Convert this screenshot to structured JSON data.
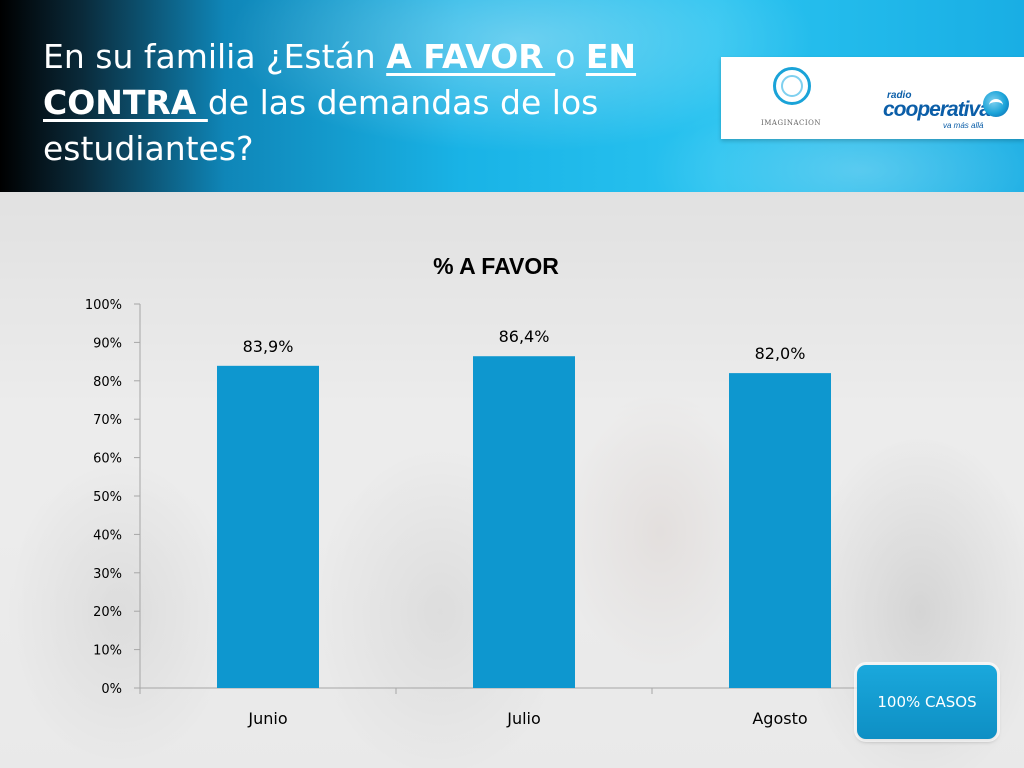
{
  "header": {
    "title_parts": [
      {
        "text": "En su familia ¿Están ",
        "underline": false
      },
      {
        "text": "A FAVOR ",
        "underline": true
      },
      {
        "text": "o ",
        "underline": false
      },
      {
        "text": "EN CONTRA ",
        "underline": true
      },
      {
        "text": "de las demandas de los estudiantes?",
        "underline": false
      }
    ],
    "logos": {
      "imaginacion": "IMAGINACION",
      "radio": "radio",
      "cooperativa": "cooperativa",
      "tagline": "va más allá"
    }
  },
  "footer_badge": "100% CASOS",
  "colors": {
    "bar": "#0e97cf",
    "axis": "#a6a6a6"
  },
  "chart_data": {
    "type": "bar",
    "title": "% A FAVOR",
    "categories": [
      "Junio",
      "Julio",
      "Agosto"
    ],
    "values": [
      83.9,
      86.4,
      82.0
    ],
    "data_labels": [
      "83,9%",
      "86,4%",
      "82,0%"
    ],
    "yticks": [
      "0%",
      "10%",
      "20%",
      "30%",
      "40%",
      "50%",
      "60%",
      "70%",
      "80%",
      "90%",
      "100%"
    ],
    "ylim": [
      0,
      100
    ],
    "grid": false,
    "legend": "none"
  }
}
